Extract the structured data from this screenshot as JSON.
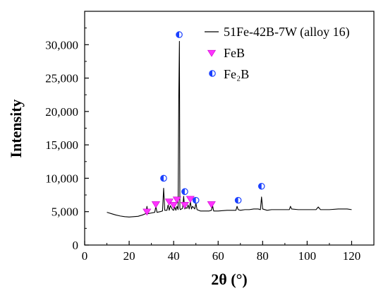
{
  "chart_data": {
    "type": "line",
    "title": "",
    "xlabel": "2θ (°)",
    "ylabel": "Intensity",
    "xlim": [
      0,
      130
    ],
    "ylim": [
      0,
      35000
    ],
    "x_ticks": [
      0,
      20,
      40,
      60,
      80,
      100,
      120
    ],
    "x_tick_labels": [
      "0",
      "20",
      "40",
      "60",
      "80",
      "100",
      "120"
    ],
    "y_ticks": [
      0,
      5000,
      10000,
      15000,
      20000,
      25000,
      30000
    ],
    "y_tick_labels": [
      "0",
      "5,000",
      "10,000",
      "15,000",
      "20,000",
      "25,000",
      "30,000"
    ],
    "grid": false,
    "legend_position": "top-right",
    "series": [
      {
        "name": "51Fe-42B-7W (alloy 16)",
        "color": "#000000",
        "x": [
          10,
          12,
          14,
          16,
          18,
          20,
          22,
          24,
          26,
          27.5,
          28,
          28.5,
          30,
          31.5,
          32,
          32.5,
          34,
          35,
          35.5,
          36,
          37,
          37.5,
          38,
          38.5,
          39.5,
          40,
          40.5,
          41,
          41.5,
          42,
          42.3,
          42.6,
          42.8,
          43,
          43.5,
          44,
          44.5,
          45,
          45.5,
          46,
          46.5,
          47,
          47.5,
          48,
          48.5,
          49.5,
          50,
          50.5,
          52,
          54,
          56,
          57,
          57.5,
          58,
          60,
          62,
          64,
          66,
          68,
          68.5,
          69,
          70,
          72,
          74,
          76,
          78,
          79,
          79.5,
          80,
          82,
          84,
          86,
          88,
          90,
          92,
          92.5,
          93,
          96,
          100,
          104,
          105,
          106,
          110,
          114,
          118,
          120
        ],
        "y": [
          4900,
          4700,
          4500,
          4350,
          4250,
          4200,
          4250,
          4300,
          4500,
          4700,
          5800,
          4700,
          4800,
          4900,
          5800,
          4900,
          5000,
          5100,
          8500,
          5200,
          5200,
          6000,
          5200,
          5900,
          5300,
          5200,
          5700,
          5200,
          5800,
          5300,
          22000,
          30500,
          5500,
          5300,
          5400,
          5500,
          7300,
          5400,
          5600,
          5500,
          6000,
          5400,
          6500,
          5400,
          5800,
          5400,
          6300,
          5300,
          5100,
          5100,
          5100,
          5200,
          5900,
          5100,
          5100,
          5150,
          5200,
          5200,
          5200,
          5800,
          5300,
          5200,
          5300,
          5300,
          5400,
          5400,
          5300,
          7200,
          5400,
          5200,
          5300,
          5300,
          5300,
          5300,
          5300,
          5800,
          5400,
          5300,
          5300,
          5300,
          5700,
          5300,
          5300,
          5400,
          5400,
          5300
        ]
      },
      {
        "name": "FeB",
        "marker": "triangle-down",
        "color": "#ff33ff",
        "x": [
          28,
          32,
          38,
          40,
          41.5,
          45,
          47.5,
          57
        ],
        "y": [
          5000,
          6100,
          6500,
          6000,
          6800,
          6000,
          6900,
          6100
        ]
      },
      {
        "name": "Fe2B",
        "legend_label": "Fe₂B",
        "marker": "circle-half",
        "color": "#1a40ff",
        "x": [
          35.5,
          42.5,
          45,
          50,
          69,
          79.5
        ],
        "y": [
          10000,
          31500,
          8000,
          6700,
          6700,
          8800
        ]
      }
    ]
  }
}
